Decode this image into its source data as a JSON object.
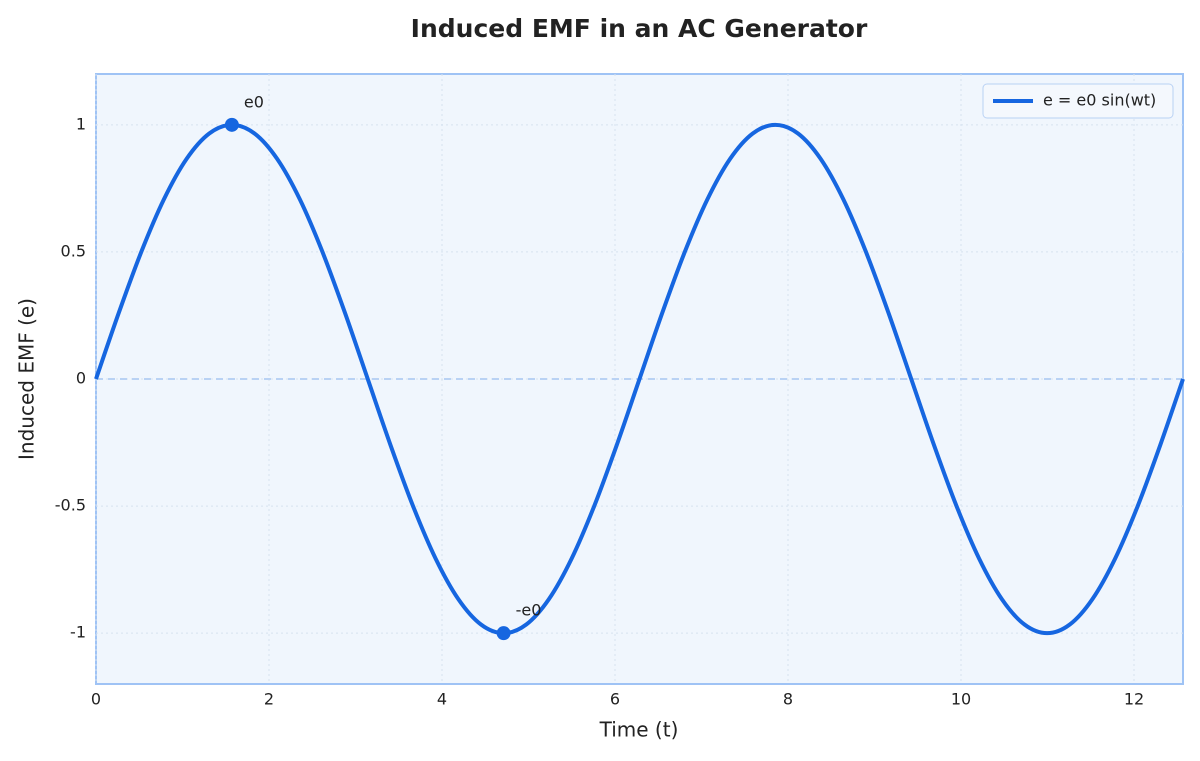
{
  "chart_data": {
    "type": "line",
    "title": "Induced EMF in an AC Generator",
    "x_label": "Time (t)",
    "y_label": "Induced EMF (e)",
    "x": [
      0,
      0.2618,
      0.5236,
      0.7854,
      1.0472,
      1.309,
      1.5708,
      1.8326,
      2.0944,
      2.3562,
      2.618,
      2.8798,
      3.1416,
      3.4034,
      3.6652,
      3.927,
      4.1888,
      4.4506,
      4.7124,
      4.9742,
      5.236,
      5.4978,
      5.7596,
      6.0214,
      6.2832,
      6.545,
      6.8068,
      7.0686,
      7.3304,
      7.5922,
      7.854,
      8.1158,
      8.3776,
      8.6394,
      8.9012,
      9.163,
      9.4248,
      9.6866,
      9.9484,
      10.2102,
      10.472,
      10.7338,
      10.9956,
      11.2574,
      11.5192,
      11.781,
      12.0428,
      12.3046,
      12.5664
    ],
    "series": [
      {
        "name": "e = e0 sin(wt)",
        "color": "#1666e0",
        "values": [
          0,
          0.2588,
          0.5,
          0.7071,
          0.866,
          0.9659,
          1,
          0.9659,
          0.866,
          0.7071,
          0.5,
          0.2588,
          0,
          -0.2588,
          -0.5,
          -0.7071,
          -0.866,
          -0.9659,
          -1,
          -0.9659,
          -0.866,
          -0.7071,
          -0.5,
          -0.2588,
          0,
          0.2588,
          0.5,
          0.7071,
          0.866,
          0.9659,
          1,
          0.9659,
          0.866,
          0.7071,
          0.5,
          0.2588,
          0,
          -0.2588,
          -0.5,
          -0.7071,
          -0.866,
          -0.9659,
          -1,
          -0.9659,
          -0.866,
          -0.7071,
          -0.5,
          -0.2588,
          0
        ]
      }
    ],
    "annotations": [
      {
        "text": "e0",
        "x": 1.5708,
        "y": 1
      },
      {
        "text": "-e0",
        "x": 4.7124,
        "y": -1
      }
    ],
    "reference_line": 0,
    "xlim": [
      0,
      12.5664
    ],
    "xticks": [
      0,
      2,
      4,
      6,
      8,
      10,
      12
    ],
    "ylim": [
      -1.2,
      1.2
    ],
    "yticks": [
      -1,
      -0.5,
      0,
      0.5,
      1
    ],
    "grid": true,
    "legend": "upper right"
  }
}
